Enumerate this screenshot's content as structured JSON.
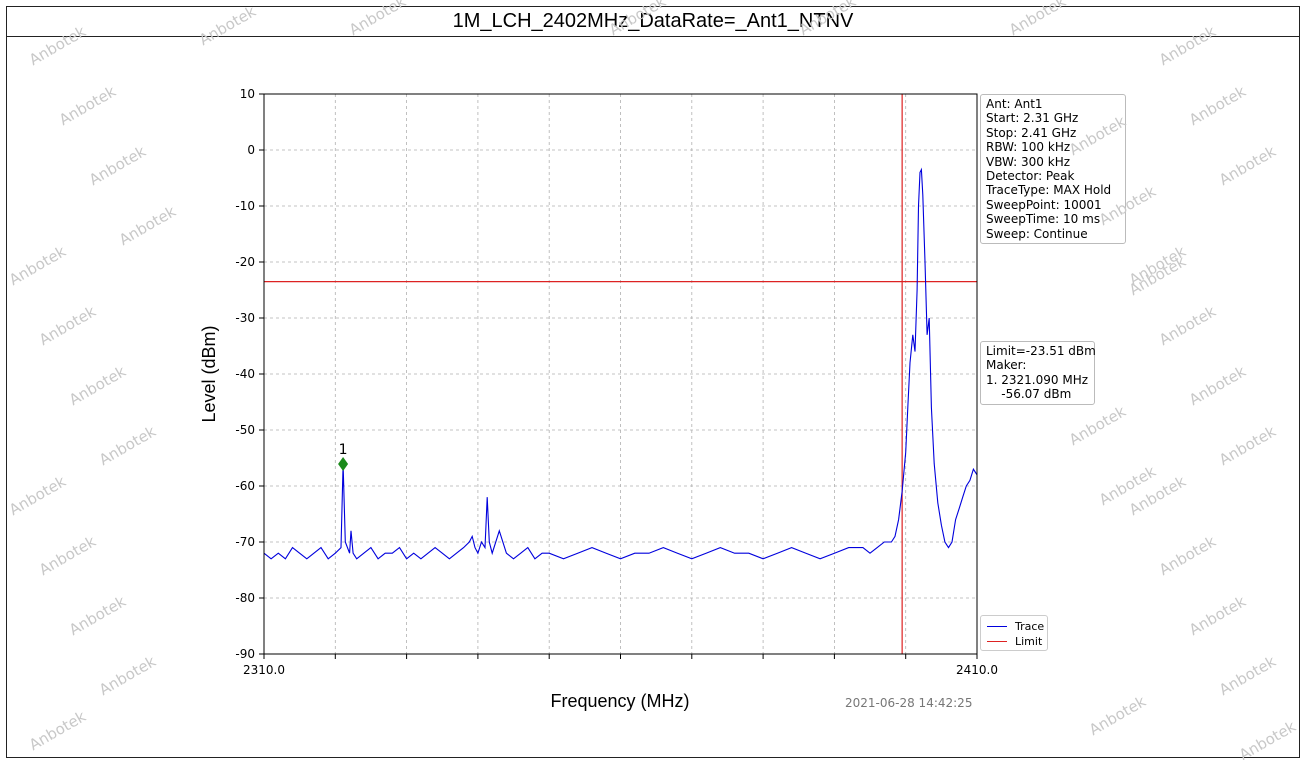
{
  "title": "1M_LCH_2402MHz_DataRate=_Ant1_NTNV",
  "watermark_text": "Anbotek",
  "timestamp": "2021-06-28 14:42:25",
  "info_lines": [
    "Ant: Ant1",
    "Start: 2.31 GHz",
    "Stop: 2.41 GHz",
    "RBW: 100 kHz",
    "VBW: 300 kHz",
    "Detector: Peak",
    "TraceType: MAX Hold",
    "SweepPoint: 10001",
    "SweepTime: 10 ms",
    "Sweep: Continue"
  ],
  "marker_lines": [
    "Limit=-23.51 dBm",
    "Maker:",
    "1. 2321.090 MHz",
    "    -56.07 dBm"
  ],
  "colors": {
    "trace": "#0000dd",
    "limit": "#dd2222",
    "marker": "#1a8a1a",
    "grid": "#b0b0b0"
  },
  "chart_data": {
    "type": "line",
    "title": "1M_LCH_2402MHz_DataRate=_Ant1_NTNV",
    "xlabel": "Frequency (MHz)",
    "ylabel": "Level (dBm)",
    "xlim": [
      2310.0,
      2410.0
    ],
    "ylim": [
      -90,
      10
    ],
    "x_tick_labels": [
      "2310.0",
      "2410.0"
    ],
    "y_ticks": [
      10,
      0,
      -10,
      -20,
      -30,
      -40,
      -50,
      -60,
      -70,
      -80,
      -90
    ],
    "grid": true,
    "legend_position": "bottom-right",
    "limit_line": {
      "name": "Limit",
      "value": -23.51
    },
    "vertical_line": 2399.5,
    "marker": {
      "label": "1",
      "x": 2321.09,
      "y": -56.07
    },
    "series": [
      {
        "name": "Trace",
        "x": [
          2310.0,
          2311,
          2312,
          2313,
          2314,
          2315,
          2316,
          2317,
          2318,
          2319,
          2320,
          2320.8,
          2321.09,
          2321.4,
          2322,
          2322.2,
          2322.5,
          2323,
          2324,
          2325,
          2326,
          2327,
          2328,
          2329,
          2330,
          2331,
          2332,
          2333,
          2334,
          2335,
          2336,
          2337,
          2338,
          2338.8,
          2339.2,
          2339.6,
          2340,
          2340.5,
          2341,
          2341.3,
          2341.6,
          2342,
          2343,
          2344,
          2345,
          2346,
          2347,
          2348,
          2349,
          2350,
          2352,
          2354,
          2356,
          2358,
          2360,
          2362,
          2364,
          2366,
          2368,
          2370,
          2372,
          2374,
          2376,
          2378,
          2380,
          2382,
          2384,
          2386,
          2388,
          2390,
          2392,
          2394,
          2395,
          2396,
          2397,
          2398,
          2398.5,
          2399,
          2399.5,
          2400,
          2400.3,
          2400.6,
          2401,
          2401.3,
          2401.6,
          2401.8,
          2402,
          2402.2,
          2402.4,
          2402.7,
          2403,
          2403.3,
          2403.6,
          2404,
          2404.5,
          2405,
          2405.5,
          2406,
          2406.5,
          2407,
          2407.5,
          2408,
          2408.5,
          2409,
          2409.5,
          2410
        ],
        "y": [
          -72,
          -73,
          -72,
          -73,
          -71,
          -72,
          -73,
          -72,
          -71,
          -73,
          -72,
          -71,
          -56.07,
          -70,
          -72,
          -68,
          -72,
          -73,
          -72,
          -71,
          -73,
          -72,
          -72,
          -71,
          -73,
          -72,
          -73,
          -72,
          -71,
          -72,
          -73,
          -72,
          -71,
          -70,
          -69,
          -71,
          -72,
          -70,
          -71,
          -62,
          -70,
          -72,
          -68,
          -72,
          -73,
          -72,
          -71,
          -73,
          -72,
          -72,
          -73,
          -72,
          -71,
          -72,
          -73,
          -72,
          -72,
          -71,
          -72,
          -73,
          -72,
          -71,
          -72,
          -72,
          -73,
          -72,
          -71,
          -72,
          -73,
          -72,
          -71,
          -71,
          -72,
          -71,
          -70,
          -70,
          -69,
          -66,
          -61,
          -54,
          -46,
          -38,
          -33,
          -36,
          -25,
          -10,
          -4,
          -3.5,
          -8,
          -20,
          -33,
          -30,
          -46,
          -56,
          -63,
          -67,
          -70,
          -71,
          -70,
          -66,
          -64,
          -62,
          -60,
          -59,
          -57,
          -58
        ]
      },
      {
        "name": "Limit"
      }
    ]
  },
  "legend": {
    "trace_label": "Trace",
    "limit_label": "Limit"
  }
}
